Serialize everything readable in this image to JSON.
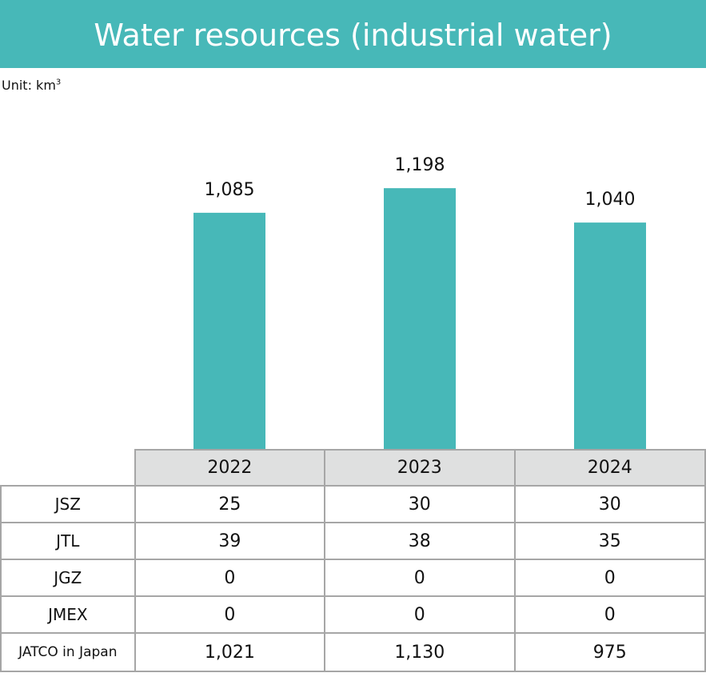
{
  "title": "Water resources (industrial water)",
  "unit": {
    "prefix": "Unit: km",
    "sup": "3"
  },
  "chart_data": {
    "type": "bar",
    "title": "Water resources (industrial water)",
    "categories": [
      "2022",
      "2023",
      "2024"
    ],
    "values": [
      1085,
      1198,
      1040
    ],
    "data_labels": [
      "1,085",
      "1,198",
      "1,040"
    ],
    "bar_color": "#47b8b8",
    "grid": false
  },
  "table": {
    "columns": [
      "2022",
      "2023",
      "2024"
    ],
    "rows": [
      {
        "label": "JSZ",
        "values": [
          "25",
          "30",
          "30"
        ]
      },
      {
        "label": "JTL",
        "values": [
          "39",
          "38",
          "35"
        ]
      },
      {
        "label": "JGZ",
        "values": [
          "0",
          "0",
          "0"
        ]
      },
      {
        "label": "JMEX",
        "values": [
          "0",
          "0",
          "0"
        ]
      },
      {
        "label": "JATCO in Japan",
        "values": [
          "1,021",
          "1,130",
          "975"
        ]
      }
    ]
  }
}
